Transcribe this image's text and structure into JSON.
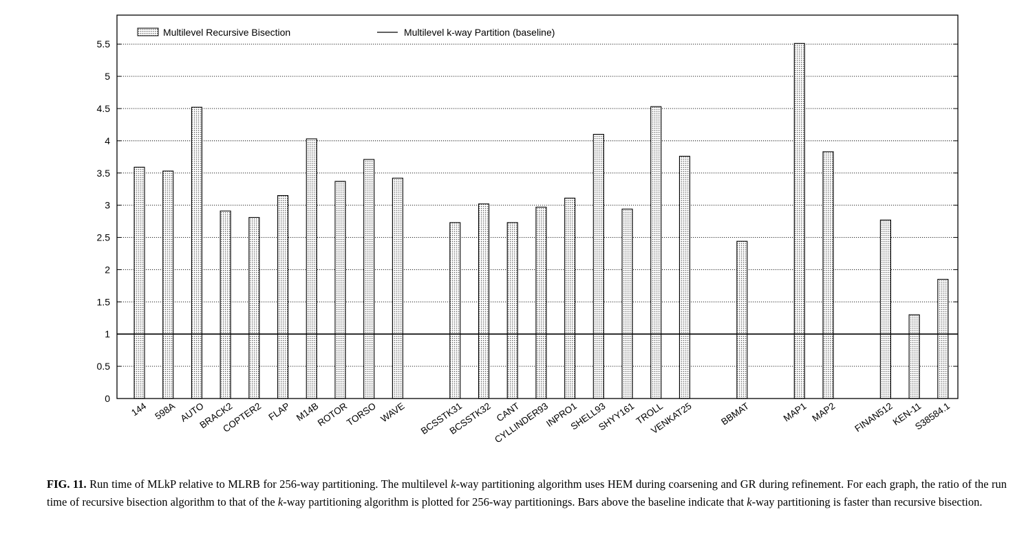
{
  "chart_data": {
    "type": "bar",
    "categories": [
      "144",
      "598A",
      "AUTO",
      "BRACK2",
      "COPTER2",
      "FLAP",
      "M14B",
      "ROTOR",
      "TORSO",
      "WAVE",
      "BCSSTK31",
      "BCSSTK32",
      "CANT",
      "CYLLINDER93",
      "INPRO1",
      "SHELL93",
      "SHYY161",
      "TROLL",
      "VENKAT25",
      "BBMAT",
      "MAP1",
      "MAP2",
      "FINAN512",
      "KEN-11",
      "S38584.1"
    ],
    "groups": [
      10,
      9,
      1,
      2,
      3
    ],
    "series": [
      {
        "name": "Multilevel Recursive Bisection",
        "values": [
          3.59,
          3.53,
          4.52,
          2.91,
          2.81,
          3.15,
          4.03,
          3.37,
          3.71,
          3.42,
          2.73,
          3.02,
          2.73,
          2.97,
          3.11,
          4.1,
          2.94,
          4.53,
          3.76,
          2.44,
          5.51,
          3.83,
          2.77,
          1.3,
          1.85
        ]
      }
    ],
    "baseline": {
      "name": "Multilevel k-way Partition (baseline)",
      "value": 1
    },
    "yticks": [
      "0",
      "0.5",
      "1",
      "1.5",
      "2",
      "2.5",
      "3",
      "3.5",
      "4",
      "4.5",
      "5",
      "5.5"
    ],
    "ylim": [
      0,
      5.95
    ],
    "grid": "horizontal dotted",
    "legend_position": "top"
  },
  "caption": {
    "label": "FIG. 11.",
    "text": "Run time of MLkP relative to MLRB for 256-way partitioning. The multilevel k-way partitioning algorithm uses HEM during coarsening and GR during refinement. For each graph, the ratio of the run time of recursive bisection algorithm to that of the k-way partitioning algorithm is plotted for 256-way partitionings. Bars above the baseline indicate that k-way partitioning is faster than recursive bisection."
  }
}
